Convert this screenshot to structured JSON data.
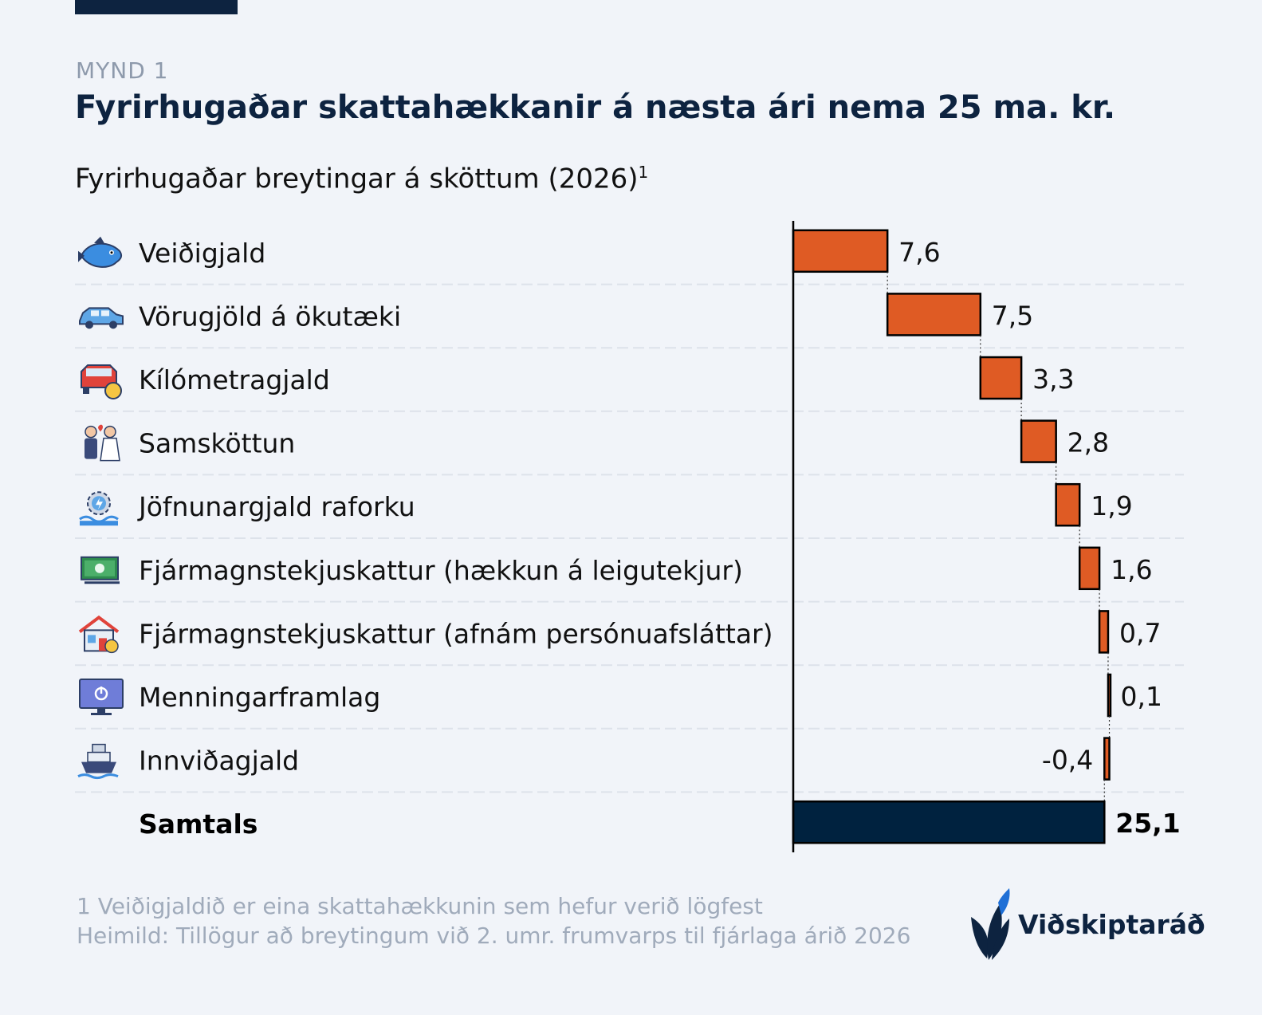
{
  "header": {
    "kicker": "MYND 1",
    "title": "Fyrirhugaðar skattahækkanir á næsta ári nema 25 ma. kr.",
    "subtitle": "Fyrirhugaðar breytingar á sköttum (2026)",
    "subtitle_sup": "1"
  },
  "colors": {
    "increase": "#df5b24",
    "total": "#00223f",
    "accent": "#0d2340"
  },
  "chart_data": {
    "type": "bar",
    "subtype": "waterfall-horizontal",
    "categories": [
      "Veiðigjald",
      "Vörugjöld á ökutæki",
      "Kílómetragjald",
      "Samsköttun",
      "Jöfnunargjald raforku",
      "Fjármagnstekjuskattur (hækkun á leigutekjur)",
      "Fjármagnstekjuskattur (afnám persónuafsláttar)",
      "Menningarframlag",
      "Innviðagjald"
    ],
    "values": [
      7.6,
      7.5,
      3.3,
      2.8,
      1.9,
      1.6,
      0.7,
      0.1,
      -0.4
    ],
    "value_labels": [
      "7,6",
      "7,5",
      "3,3",
      "2,8",
      "1,9",
      "1,6",
      "0,7",
      "0,1",
      "-0,4"
    ],
    "icons": [
      "fish-icon",
      "car-icon",
      "car-coin-icon",
      "couple-icon",
      "power-gear-icon",
      "cash-icon",
      "house-coin-icon",
      "monitor-power-icon",
      "cruise-ship-icon"
    ],
    "total": {
      "label": "Samtals",
      "value": 25.1,
      "value_label": "25,1"
    },
    "xlim": [
      0,
      25.1
    ],
    "grid": false
  },
  "footer": {
    "note": "1 Veiðigjaldið er eina skattahækkunin sem hefur verið lögfest",
    "source": "Heimild: Tillögur að breytingum við 2. umr. frumvarps til fjárlaga árið 2026",
    "logo_text": "Viðskiptaráð"
  }
}
